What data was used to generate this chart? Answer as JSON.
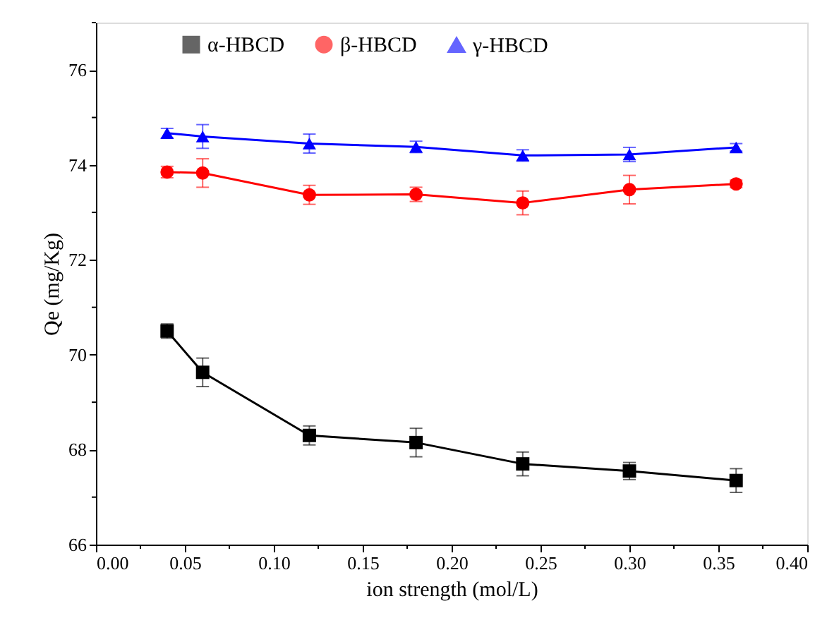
{
  "chart_data": {
    "type": "line",
    "xlabel": "ion strength (mol/L)",
    "ylabel": "Qe (mg/Kg)",
    "x": [
      0.04,
      0.06,
      0.12,
      0.18,
      0.24,
      0.3,
      0.36
    ],
    "series": [
      {
        "name": "α-HBCD",
        "color": "#000000",
        "marker": "square",
        "values": [
          70.5,
          69.63,
          68.3,
          68.15,
          67.7,
          67.55,
          67.35
        ],
        "errors": [
          0.15,
          0.3,
          0.2,
          0.3,
          0.25,
          0.18,
          0.25
        ]
      },
      {
        "name": "β-HBCD",
        "color": "#ff0000",
        "marker": "circle",
        "values": [
          73.85,
          73.83,
          73.37,
          73.38,
          73.2,
          73.48,
          73.6
        ],
        "errors": [
          0.12,
          0.3,
          0.2,
          0.15,
          0.25,
          0.3,
          0.08
        ]
      },
      {
        "name": "γ-HBCD",
        "color": "#0000ff",
        "marker": "triangle",
        "values": [
          74.67,
          74.6,
          74.45,
          74.38,
          74.2,
          74.22,
          74.37
        ],
        "errors": [
          0.1,
          0.25,
          0.2,
          0.12,
          0.12,
          0.15,
          0.08
        ]
      }
    ],
    "xlim": [
      0,
      0.4
    ],
    "xticks": [
      {
        "value": 0,
        "label": "0.00"
      },
      {
        "value": 0.025,
        "label": null
      },
      {
        "value": 0.05,
        "label": "0.05"
      },
      {
        "value": 0.075,
        "label": null
      },
      {
        "value": 0.1,
        "label": "0.10"
      },
      {
        "value": 0.125,
        "label": null
      },
      {
        "value": 0.15,
        "label": "0.15"
      },
      {
        "value": 0.175,
        "label": null
      },
      {
        "value": 0.2,
        "label": "0.20"
      },
      {
        "value": 0.225,
        "label": null
      },
      {
        "value": 0.25,
        "label": "0.25"
      },
      {
        "value": 0.275,
        "label": null
      },
      {
        "value": 0.3,
        "label": "0.30"
      },
      {
        "value": 0.325,
        "label": null
      },
      {
        "value": 0.35,
        "label": "0.35"
      },
      {
        "value": 0.375,
        "label": null
      },
      {
        "value": 0.4,
        "label": "0.40"
      }
    ],
    "ylim": [
      66,
      77
    ],
    "yticks": [
      66,
      {
        "value": 67,
        "label": null
      },
      68,
      {
        "value": 69,
        "label": null
      },
      70,
      {
        "value": 71,
        "label": null
      },
      72,
      {
        "value": 73,
        "label": null
      },
      74,
      {
        "value": 75,
        "label": null
      },
      76,
      {
        "value": 77,
        "label": null
      }
    ],
    "grid": false,
    "legend": "top",
    "line_style": "solid"
  }
}
